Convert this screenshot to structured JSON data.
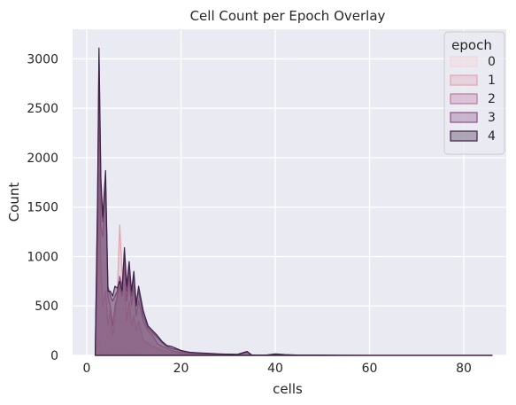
{
  "chart_data": {
    "type": "area",
    "title": "Cell Count per Epoch Overlay",
    "xlabel": "cells",
    "ylabel": "Count",
    "xlim": [
      -3,
      89
    ],
    "ylim": [
      0,
      3300
    ],
    "xticks": [
      0,
      20,
      40,
      60,
      80
    ],
    "yticks": [
      0,
      500,
      1000,
      1500,
      2000,
      2500,
      3000
    ],
    "grid": true,
    "background": "#eaeaf2",
    "legend": {
      "title": "epoch",
      "placement": "top-right"
    },
    "x": [
      1.8,
      2.3,
      2.6,
      3.0,
      3.4,
      4.0,
      4.5,
      5.0,
      5.5,
      6.0,
      6.5,
      7.0,
      7.5,
      8.0,
      8.5,
      9.0,
      9.5,
      10.0,
      10.5,
      11.0,
      12.0,
      13.0,
      14.0,
      15.0,
      16.0,
      17.0,
      18.0,
      19.0,
      20.0,
      21.0,
      22.0,
      24.0,
      26.0,
      28.0,
      30.0,
      32.0,
      34.0,
      35.0,
      36.0,
      38.0,
      40.0,
      42.0,
      45.0,
      50.0,
      60.0,
      70.0,
      80.0,
      86.0
    ],
    "series": [
      {
        "name": "0",
        "color": "#f1d5d9",
        "values": [
          0,
          150,
          200,
          60,
          30,
          20,
          40,
          40,
          70,
          60,
          100,
          60,
          60,
          60,
          30,
          30,
          20,
          20,
          15,
          15,
          10,
          10,
          8,
          5,
          5,
          5,
          3,
          3,
          2,
          2,
          2,
          1,
          1,
          1,
          1,
          0,
          0,
          0,
          0,
          0,
          0,
          0,
          0,
          0,
          0,
          0,
          0,
          0
        ]
      },
      {
        "name": "1",
        "color": "#dfa3b1",
        "values": [
          0,
          800,
          1850,
          900,
          500,
          650,
          300,
          450,
          200,
          350,
          650,
          1320,
          850,
          700,
          350,
          550,
          300,
          400,
          250,
          350,
          150,
          120,
          90,
          70,
          50,
          40,
          30,
          25,
          20,
          15,
          10,
          8,
          6,
          4,
          3,
          2,
          2,
          1,
          0,
          0,
          0,
          0,
          0,
          0,
          0,
          0,
          0,
          0
        ]
      },
      {
        "name": "2",
        "color": "#be7aa0",
        "values": [
          0,
          1200,
          2750,
          1300,
          1200,
          1750,
          600,
          500,
          300,
          500,
          600,
          700,
          600,
          900,
          550,
          800,
          500,
          700,
          400,
          550,
          350,
          250,
          200,
          120,
          90,
          70,
          50,
          40,
          30,
          25,
          20,
          15,
          10,
          8,
          6,
          5,
          4,
          3,
          2,
          2,
          1,
          1,
          0,
          0,
          0,
          0,
          0,
          0
        ]
      },
      {
        "name": "3",
        "color": "#8a5388",
        "values": [
          0,
          1500,
          3050,
          1700,
          1350,
          1750,
          700,
          600,
          550,
          600,
          650,
          800,
          700,
          1000,
          650,
          900,
          600,
          800,
          550,
          650,
          400,
          280,
          230,
          180,
          130,
          90,
          70,
          60,
          45,
          35,
          30,
          20,
          15,
          12,
          10,
          8,
          30,
          5,
          3,
          2,
          10,
          5,
          2,
          1,
          0,
          0,
          0,
          0
        ]
      },
      {
        "name": "4",
        "color": "#3d2146",
        "values": [
          0,
          1600,
          3110,
          1800,
          1400,
          1870,
          650,
          650,
          600,
          700,
          680,
          750,
          650,
          1090,
          700,
          950,
          650,
          850,
          500,
          700,
          450,
          300,
          250,
          200,
          140,
          100,
          90,
          70,
          50,
          40,
          30,
          25,
          20,
          15,
          12,
          10,
          40,
          5,
          3,
          2,
          15,
          8,
          3,
          2,
          0,
          0,
          0,
          0
        ]
      }
    ]
  }
}
